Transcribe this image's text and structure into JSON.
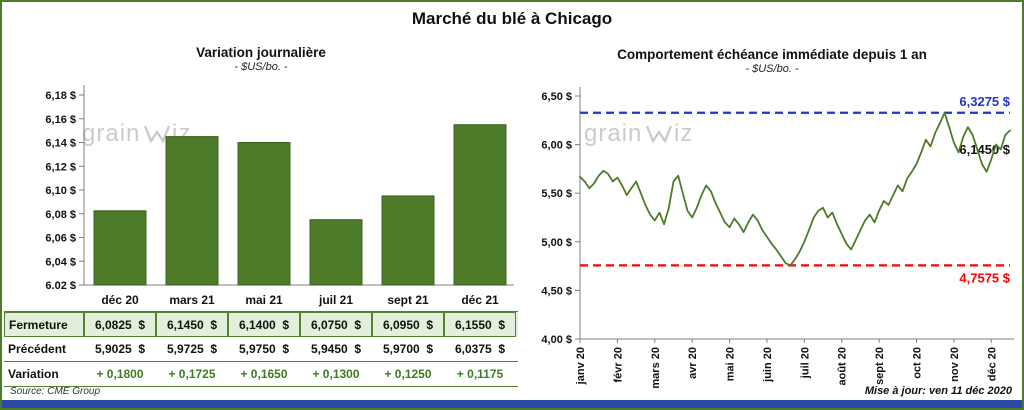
{
  "page": {
    "title": "Marché du blé à Chicago",
    "source": "Source: CME Group",
    "updated": "Mise à jour: ven 11 déc 2020"
  },
  "watermark": "grainwiz",
  "colors": {
    "green": "#4e7b2a",
    "green_dark": "#3c611f",
    "light_green_row": "#e2efda",
    "table_border": "#548235",
    "variation_green": "#3c7d21",
    "blue": "#2036c8",
    "red": "#fe0000",
    "strip_blue": "#2b49a8",
    "axis_gray": "#7f7f7f",
    "watermark_gray": "#c8ccd0"
  },
  "table": {
    "rows": [
      {
        "label": "Fermeture",
        "values": [
          "6,0825  $",
          "6,1450  $",
          "6,1400  $",
          "6,0750  $",
          "6,0950  $",
          "6,1550  $"
        ]
      },
      {
        "label": "Précédent",
        "values": [
          "5,9025  $",
          "5,9725  $",
          "5,9750  $",
          "5,9450  $",
          "5,9700  $",
          "6,0375  $"
        ]
      },
      {
        "label": "Variation",
        "values": [
          "+ 0,1800",
          "+ 0,1725",
          "+ 0,1650",
          "+ 0,1300",
          "+ 0,1250",
          "+ 0,1175"
        ]
      }
    ]
  },
  "chart_data": [
    {
      "type": "bar",
      "title": "Variation journalière",
      "subtitle": "- $US/bo. -",
      "categories": [
        "déc 20",
        "mars 21",
        "mai 21",
        "juil 21",
        "sept 21",
        "déc 21"
      ],
      "values": [
        6.0825,
        6.145,
        6.14,
        6.075,
        6.095,
        6.155
      ],
      "ylim": [
        6.02,
        6.18
      ],
      "yticks": [
        6.02,
        6.04,
        6.06,
        6.08,
        6.1,
        6.12,
        6.14,
        6.16,
        6.18
      ],
      "ytick_labels": [
        "6,02 $",
        "6,04 $",
        "6,06 $",
        "6,08 $",
        "6,10 $",
        "6,12 $",
        "6,14 $",
        "6,16 $",
        "6,18 $"
      ],
      "grid": false,
      "bar_color": "#4e7b2a"
    },
    {
      "type": "line",
      "title": "Comportement échéance immédiate depuis 1 an",
      "subtitle": "- $US/bo. -",
      "x_labels": [
        "janv 20",
        "févr 20",
        "mars 20",
        "avr 20",
        "mai 20",
        "juin 20",
        "juil 20",
        "août 20",
        "sept 20",
        "oct 20",
        "nov 20",
        "déc 20"
      ],
      "values": [
        5.67,
        5.62,
        5.55,
        5.6,
        5.68,
        5.73,
        5.7,
        5.62,
        5.66,
        5.58,
        5.48,
        5.55,
        5.62,
        5.5,
        5.38,
        5.28,
        5.22,
        5.3,
        5.18,
        5.35,
        5.62,
        5.68,
        5.5,
        5.32,
        5.25,
        5.35,
        5.48,
        5.58,
        5.52,
        5.4,
        5.3,
        5.2,
        5.15,
        5.24,
        5.18,
        5.1,
        5.2,
        5.28,
        5.22,
        5.12,
        5.05,
        4.98,
        4.92,
        4.85,
        4.78,
        4.7575,
        4.82,
        4.9,
        5.0,
        5.12,
        5.25,
        5.32,
        5.35,
        5.25,
        5.3,
        5.18,
        5.08,
        4.98,
        4.92,
        5.02,
        5.12,
        5.22,
        5.28,
        5.2,
        5.32,
        5.42,
        5.38,
        5.48,
        5.58,
        5.52,
        5.65,
        5.72,
        5.8,
        5.92,
        6.05,
        5.98,
        6.12,
        6.22,
        6.3275,
        6.18,
        6.02,
        5.92,
        6.08,
        6.18,
        6.1,
        5.95,
        5.8,
        5.72,
        5.85,
        6.0,
        5.95,
        6.1,
        6.145
      ],
      "ylim": [
        4.0,
        6.5
      ],
      "yticks": [
        4.0,
        4.5,
        5.0,
        5.5,
        6.0,
        6.5
      ],
      "ytick_labels": [
        "4,00 $",
        "4,50 $",
        "5,00 $",
        "5,50 $",
        "6,00 $",
        "6,50 $"
      ],
      "grid": false,
      "max_line": {
        "value": 6.3275,
        "label": "6,3275 $"
      },
      "min_line": {
        "value": 4.7575,
        "label": "4,7575 $"
      },
      "last_point": {
        "value": 6.145,
        "label": "6,1450 $"
      },
      "line_color": "#4e7b2a"
    }
  ]
}
